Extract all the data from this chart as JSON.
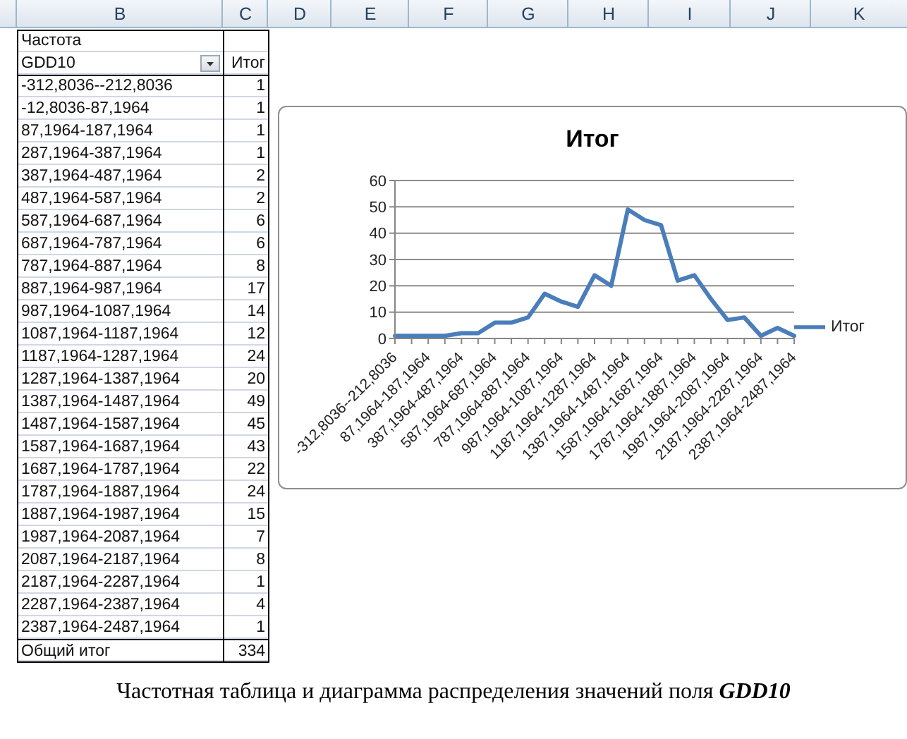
{
  "chart_data": [
    {
      "type": "other",
      "categories": [
        "-312,8036--212,8036",
        "-12,8036-87,1964",
        "87,1964-187,1964",
        "287,1964-387,1964",
        "387,1964-487,1964",
        "487,1964-587,1964",
        "587,1964-687,1964",
        "687,1964-787,1964",
        "787,1964-887,1964",
        "887,1964-987,1964",
        "987,1964-1087,1964",
        "1087,1964-1187,1964",
        "1187,1964-1287,1964",
        "1287,1964-1387,1964",
        "1387,1964-1487,1964",
        "1487,1964-1587,1964",
        "1587,1964-1687,1964",
        "1687,1964-1787,1964",
        "1787,1964-1887,1964",
        "1887,1964-1987,1964",
        "1987,1964-2087,1964",
        "2087,1964-2187,1964",
        "2187,1964-2287,1964",
        "2287,1964-2387,1964",
        "2387,1964-2487,1964"
      ],
      "values": [
        1,
        1,
        1,
        1,
        2,
        2,
        6,
        6,
        8,
        17,
        14,
        12,
        24,
        20,
        49,
        45,
        43,
        22,
        24,
        15,
        7,
        8,
        1,
        4,
        1
      ],
      "data_labels": true,
      "annotations": [
        "Частота",
        "GDD10",
        "Итог",
        "Общий итог",
        "334",
        "B",
        "C",
        "D",
        "E",
        "F",
        "G",
        "H",
        "I",
        "J",
        "K"
      ]
    },
    {
      "type": "line",
      "title": "Итог",
      "categories": [
        "-312,8036--212,8036",
        null,
        "87,1964-187,1964",
        null,
        "387,1964-487,1964",
        null,
        "587,1964-687,1964",
        null,
        "787,1964-887,1964",
        null,
        "987,1964-1087,1964",
        null,
        "1187,1964-1287,1964",
        null,
        "1387,1964-1487,1964",
        null,
        "1587,1964-1687,1964",
        null,
        "1787,1964-1887,1964",
        null,
        "1987,1964-2087,1964",
        null,
        "2187,1964-2287,1964",
        null,
        "2387,1964-2487,1964"
      ],
      "series": [
        {
          "name": "Итог",
          "color": "#4a7ebb",
          "values": [
            1,
            1,
            1,
            1,
            2,
            2,
            6,
            6,
            8,
            17,
            14,
            12,
            24,
            20,
            49,
            45,
            43,
            22,
            24,
            15,
            7,
            8,
            1,
            4,
            1
          ]
        }
      ],
      "ylim": [
        0,
        60
      ],
      "yticks": [
        0,
        10,
        20,
        30,
        40,
        50,
        60
      ],
      "grid": "y",
      "legend": "right",
      "marker": "none",
      "line_style": "solid",
      "annotations": [
        "Частотная таблица и диаграмма распределения значений поля GDD10"
      ]
    }
  ]
}
